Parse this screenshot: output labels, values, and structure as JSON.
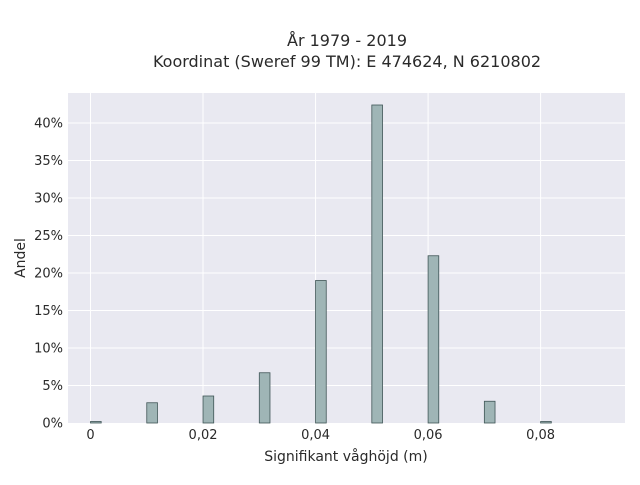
{
  "chart_data": {
    "type": "bar",
    "title": "År 1979 - 2019",
    "subtitle": "Koordinat (Sweref 99 TM): E 474624, N 6210802",
    "xlabel": "Signifikant våghöjd (m)",
    "ylabel": "Andel",
    "x": [
      0,
      0.01,
      0.02,
      0.03,
      0.04,
      0.05,
      0.06,
      0.07,
      0.08
    ],
    "values": [
      0.2,
      2.7,
      3.6,
      6.7,
      19.0,
      42.4,
      22.3,
      2.9,
      0.2
    ],
    "xlim": [
      -0.004,
      0.095
    ],
    "ylim": [
      0,
      44
    ],
    "x_ticks": [
      0,
      0.02,
      0.04,
      0.06,
      0.08
    ],
    "x_tick_labels": [
      "0",
      "0,02",
      "0,04",
      "0,06",
      "0,08"
    ],
    "y_ticks": [
      0,
      5,
      10,
      15,
      20,
      25,
      30,
      35,
      40
    ],
    "y_tick_labels": [
      "0%",
      "5%",
      "10%",
      "15%",
      "20%",
      "25%",
      "30%",
      "35%",
      "40%"
    ],
    "grid": true,
    "colors": {
      "plot_background": "#e9e9f1",
      "bar_fill": "#9fb5b6",
      "bar_edge": "#3f5556",
      "grid": "#ffffff"
    }
  }
}
